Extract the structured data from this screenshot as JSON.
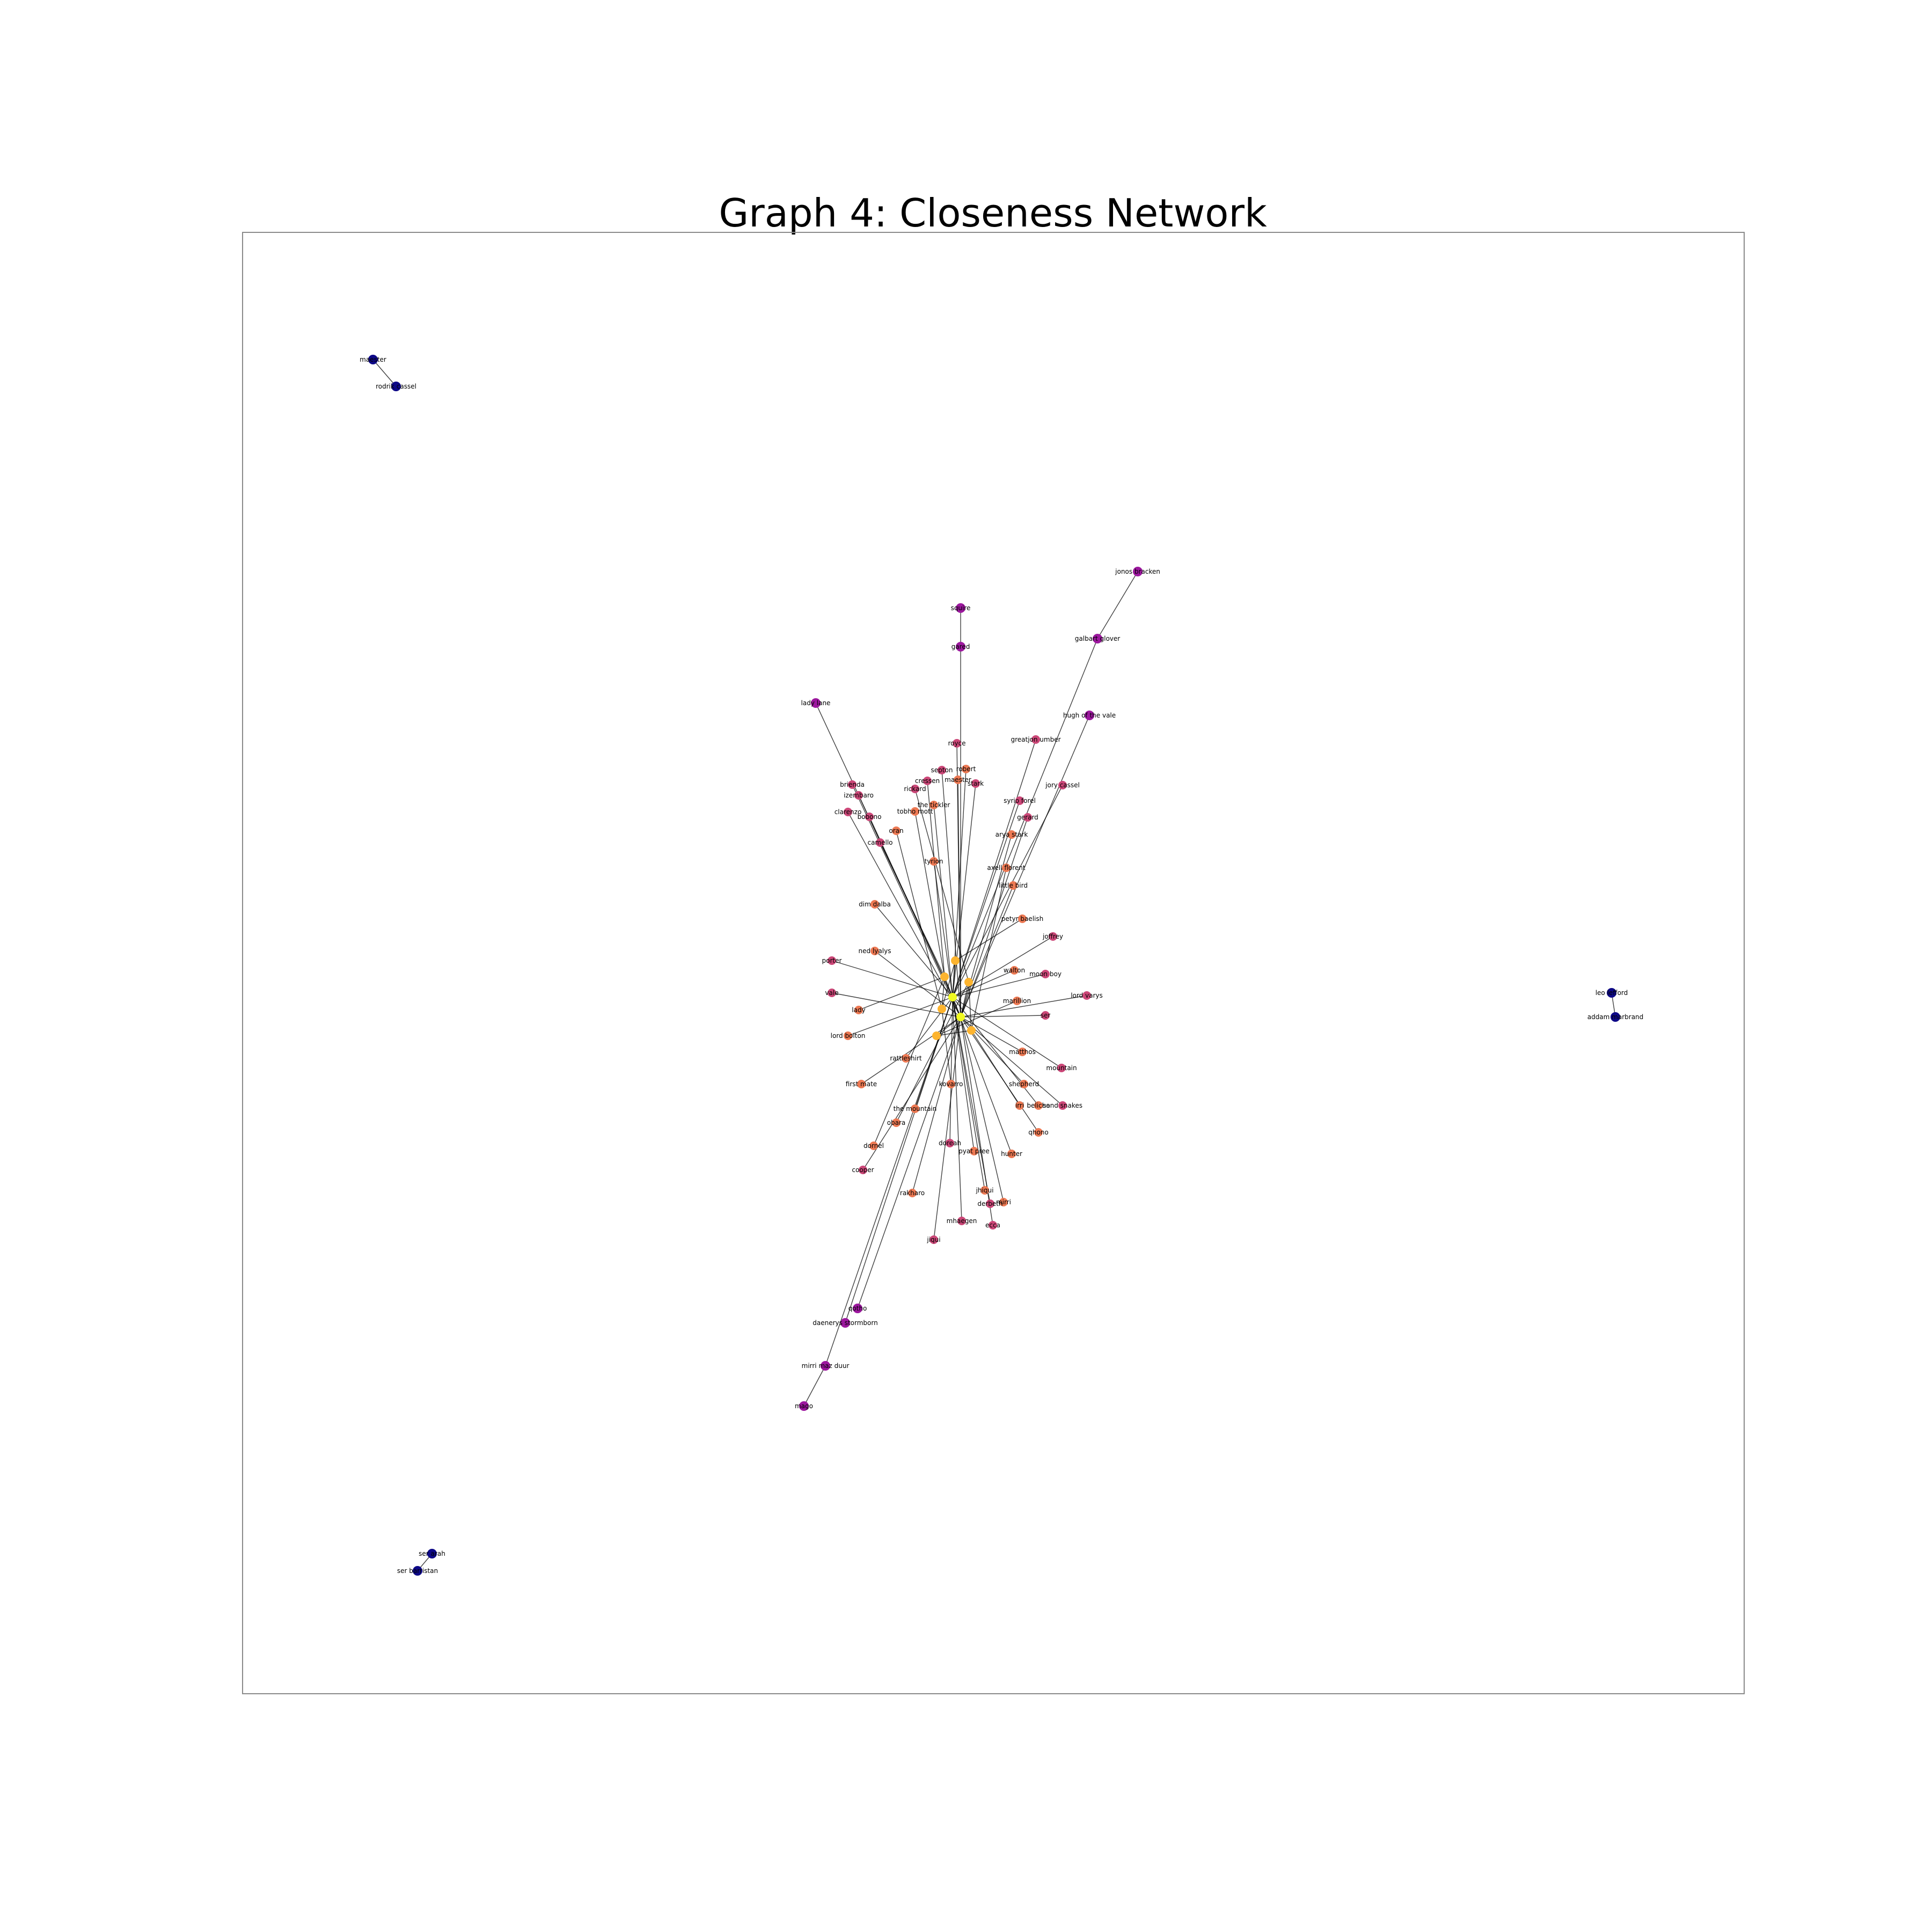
{
  "title": "Graph 4: Closeness Network",
  "colors": {
    "isolated": "#0d0887",
    "periphery": "#9c179e",
    "outer": "#cc4778",
    "mid": "#ed7953",
    "core": "#fdb42f",
    "center": "#f0f921",
    "edge": "#000000"
  },
  "nodes": [
    {
      "id": "maester",
      "label": "maester",
      "tier": "isolated"
    },
    {
      "id": "rodrik",
      "label": "rodrik cassel",
      "tier": "isolated"
    },
    {
      "id": "leo",
      "label": "leo lefford",
      "tier": "isolated"
    },
    {
      "id": "addam",
      "label": "addam marbrand",
      "tier": "isolated"
    },
    {
      "id": "serarah",
      "label": "ser arah",
      "tier": "isolated"
    },
    {
      "id": "serbarristan",
      "label": "ser barristan",
      "tier": "isolated"
    },
    {
      "id": "jonos",
      "label": "jonos bracken",
      "tier": "periphery"
    },
    {
      "id": "galbart",
      "label": "galbart glover",
      "tier": "periphery"
    },
    {
      "id": "squire",
      "label": "squire",
      "tier": "periphery"
    },
    {
      "id": "gared",
      "label": "gared",
      "tier": "periphery"
    },
    {
      "id": "ladylane",
      "label": "lady lane",
      "tier": "periphery"
    },
    {
      "id": "hugh",
      "label": "hugh of the vale",
      "tier": "periphery"
    },
    {
      "id": "miri",
      "label": "mirri maz duur",
      "tier": "periphery"
    },
    {
      "id": "mago",
      "label": "mago",
      "tier": "periphery"
    },
    {
      "id": "qotho",
      "label": "qotho",
      "tier": "periphery"
    },
    {
      "id": "daenerys",
      "label": "daenerys stormborn",
      "tier": "periphery"
    },
    {
      "id": "greatjon",
      "label": "greatjon umber",
      "tier": "outer"
    },
    {
      "id": "royce",
      "label": "royce",
      "tier": "outer"
    },
    {
      "id": "jory",
      "label": "jory cassel",
      "tier": "outer"
    },
    {
      "id": "brienda",
      "label": "brienda",
      "tier": "outer"
    },
    {
      "id": "izembaro",
      "label": "izembaro",
      "tier": "outer"
    },
    {
      "id": "clarenzo",
      "label": "clarenzo",
      "tier": "outer"
    },
    {
      "id": "bobono",
      "label": "bobono",
      "tier": "outer"
    },
    {
      "id": "camello",
      "label": "camello",
      "tier": "outer"
    },
    {
      "id": "septon",
      "label": "septon",
      "tier": "outer"
    },
    {
      "id": "robert",
      "label": "robert",
      "tier": "mid"
    },
    {
      "id": "maester2",
      "label": "maester",
      "tier": "mid"
    },
    {
      "id": "stark",
      "label": "stark",
      "tier": "outer"
    },
    {
      "id": "cressen",
      "label": "cressen",
      "tier": "outer"
    },
    {
      "id": "rickard",
      "label": "rickard",
      "tier": "outer"
    },
    {
      "id": "syrio",
      "label": "syrio forel",
      "tier": "outer"
    },
    {
      "id": "gerard",
      "label": "gerard",
      "tier": "outer"
    },
    {
      "id": "tobho",
      "label": "tobho mott",
      "tier": "mid"
    },
    {
      "id": "tickler",
      "label": "the tickler",
      "tier": "mid"
    },
    {
      "id": "arya",
      "label": "arya stark",
      "tier": "mid"
    },
    {
      "id": "oran",
      "label": "oran",
      "tier": "mid"
    },
    {
      "id": "tyrion",
      "label": "tyrion",
      "tier": "mid"
    },
    {
      "id": "axell",
      "label": "axell florent",
      "tier": "mid"
    },
    {
      "id": "littlebird",
      "label": "little bird",
      "tier": "mid"
    },
    {
      "id": "dim",
      "label": "dim dalba",
      "tier": "mid"
    },
    {
      "id": "petyr",
      "label": "petyr baelish",
      "tier": "mid"
    },
    {
      "id": "joffrey",
      "label": "joffrey",
      "tier": "outer"
    },
    {
      "id": "ned",
      "label": "ned lyalys",
      "tier": "mid"
    },
    {
      "id": "walton",
      "label": "walton",
      "tier": "mid"
    },
    {
      "id": "varys",
      "label": "lord varys",
      "tier": "outer"
    },
    {
      "id": "moonboy",
      "label": "moon boy",
      "tier": "outer"
    },
    {
      "id": "lady",
      "label": "lady",
      "tier": "mid"
    },
    {
      "id": "lordbolton",
      "label": "lord bolton",
      "tier": "mid"
    },
    {
      "id": "firstmate",
      "label": "first mate",
      "tier": "mid"
    },
    {
      "id": "mountain",
      "label": "mountain",
      "tier": "outer"
    },
    {
      "id": "sand",
      "label": "sand snakes",
      "tier": "outer"
    },
    {
      "id": "themountain",
      "label": "the mountain",
      "tier": "mid"
    },
    {
      "id": "obara",
      "label": "obara",
      "tier": "mid"
    },
    {
      "id": "rakharo",
      "label": "rakharo",
      "tier": "mid"
    },
    {
      "id": "mhaegen",
      "label": "mhaegen",
      "tier": "outer"
    },
    {
      "id": "jiqui",
      "label": "jiqui",
      "tier": "outer"
    },
    {
      "id": "doreah",
      "label": "doreah",
      "tier": "outer"
    },
    {
      "id": "dornel",
      "label": "dornel",
      "tier": "mid"
    },
    {
      "id": "cooper",
      "label": "cooper",
      "tier": "outer"
    },
    {
      "id": "hunter",
      "label": "hunter",
      "tier": "mid"
    },
    {
      "id": "qhono",
      "label": "qhono",
      "tier": "mid"
    },
    {
      "id": "pyatpree",
      "label": "pyat pree",
      "tier": "mid"
    },
    {
      "id": "marillion",
      "label": "marillion",
      "tier": "mid"
    },
    {
      "id": "ser",
      "label": "ser",
      "tier": "outer"
    },
    {
      "id": "rattleshirt",
      "label": "rattleshirt",
      "tier": "mid"
    },
    {
      "id": "kovarro",
      "label": "kovarro",
      "tier": "mid"
    },
    {
      "id": "shepherd",
      "label": "shepherd",
      "tier": "mid"
    },
    {
      "id": "belicho",
      "label": "belicho",
      "tier": "mid"
    },
    {
      "id": "irri",
      "label": "irri",
      "tier": "mid"
    },
    {
      "id": "matthos",
      "label": "matthos",
      "tier": "mid"
    },
    {
      "id": "jhiqui",
      "label": "jhiqui",
      "tier": "mid"
    },
    {
      "id": "mirri2",
      "label": "mirri",
      "tier": "mid"
    },
    {
      "id": "derbeth",
      "label": "derbeth",
      "tier": "outer"
    },
    {
      "id": "ecca",
      "label": "ecca",
      "tier": "outer"
    },
    {
      "id": "porter",
      "label": "porter",
      "tier": "outer"
    },
    {
      "id": "vale",
      "label": "vale",
      "tier": "outer"
    },
    {
      "id": "c1",
      "label": "",
      "tier": "center"
    },
    {
      "id": "c2",
      "label": "",
      "tier": "center"
    },
    {
      "id": "c3",
      "label": "",
      "tier": "core"
    },
    {
      "id": "c4",
      "label": "",
      "tier": "core"
    },
    {
      "id": "c5",
      "label": "",
      "tier": "core"
    },
    {
      "id": "c6",
      "label": "",
      "tier": "core"
    },
    {
      "id": "c7",
      "label": "",
      "tier": "core"
    },
    {
      "id": "c8",
      "label": "",
      "tier": "core"
    }
  ],
  "edges": [
    [
      "maester",
      "rodrik"
    ],
    [
      "leo",
      "addam"
    ],
    [
      "serarah",
      "serbarristan"
    ],
    [
      "jonos",
      "galbart"
    ],
    [
      "galbart",
      "c1"
    ],
    [
      "squire",
      "gared"
    ],
    [
      "gared",
      "c2"
    ],
    [
      "ladylane",
      "c1"
    ],
    [
      "hugh",
      "c2"
    ],
    [
      "mago",
      "miri"
    ],
    [
      "miri",
      "c1"
    ],
    [
      "qotho",
      "c2"
    ],
    [
      "daenerys",
      "c1"
    ],
    [
      "greatjon",
      "c1"
    ],
    [
      "royce",
      "c2"
    ],
    [
      "jory",
      "c1"
    ],
    [
      "brienda",
      "c2"
    ],
    [
      "izembaro",
      "c1"
    ],
    [
      "clarenzo",
      "c2"
    ],
    [
      "bobono",
      "c1"
    ],
    [
      "camello",
      "c3"
    ],
    [
      "septon",
      "c2"
    ],
    [
      "robert",
      "c1"
    ],
    [
      "maester2",
      "c2"
    ],
    [
      "stark",
      "c1"
    ],
    [
      "cressen",
      "c3"
    ],
    [
      "rickard",
      "c4"
    ],
    [
      "syrio",
      "c1"
    ],
    [
      "gerard",
      "c2"
    ],
    [
      "tobho",
      "c3"
    ],
    [
      "tickler",
      "c1"
    ],
    [
      "arya",
      "c2"
    ],
    [
      "oran",
      "c5"
    ],
    [
      "tyrion",
      "c1"
    ],
    [
      "axell",
      "c6"
    ],
    [
      "littlebird",
      "c2"
    ],
    [
      "dim",
      "c1"
    ],
    [
      "petyr",
      "c7"
    ],
    [
      "joffrey",
      "c1"
    ],
    [
      "ned",
      "c2"
    ],
    [
      "walton",
      "c1"
    ],
    [
      "varys",
      "c2"
    ],
    [
      "moonboy",
      "c1"
    ],
    [
      "lady",
      "c3"
    ],
    [
      "lordbolton",
      "c1"
    ],
    [
      "firstmate",
      "c2"
    ],
    [
      "mountain",
      "c1"
    ],
    [
      "sand",
      "c2"
    ],
    [
      "themountain",
      "c1"
    ],
    [
      "obara",
      "c4"
    ],
    [
      "rakharo",
      "c2"
    ],
    [
      "mhaegen",
      "c1"
    ],
    [
      "jiqui",
      "c2"
    ],
    [
      "doreah",
      "c1"
    ],
    [
      "dornel",
      "c3"
    ],
    [
      "cooper",
      "c2"
    ],
    [
      "hunter",
      "c1"
    ],
    [
      "qhono",
      "c2"
    ],
    [
      "pyatpree",
      "c1"
    ],
    [
      "marillion",
      "c8"
    ],
    [
      "ser",
      "c2"
    ],
    [
      "rattleshirt",
      "c1"
    ],
    [
      "kovarro",
      "c5"
    ],
    [
      "shepherd",
      "c2"
    ],
    [
      "belicho",
      "c1"
    ],
    [
      "irri",
      "c6"
    ],
    [
      "matthos",
      "c2"
    ],
    [
      "jhiqui",
      "c1"
    ],
    [
      "mirri2",
      "c2"
    ],
    [
      "derbeth",
      "c1"
    ],
    [
      "ecca",
      "c2"
    ],
    [
      "porter",
      "c1"
    ],
    [
      "vale",
      "c2"
    ],
    [
      "c1",
      "c2"
    ],
    [
      "c1",
      "c3"
    ],
    [
      "c2",
      "c4"
    ],
    [
      "c3",
      "c5"
    ],
    [
      "c4",
      "c6"
    ],
    [
      "c5",
      "c7"
    ],
    [
      "c6",
      "c8"
    ],
    [
      "c7",
      "c1"
    ],
    [
      "c8",
      "c2"
    ]
  ]
}
